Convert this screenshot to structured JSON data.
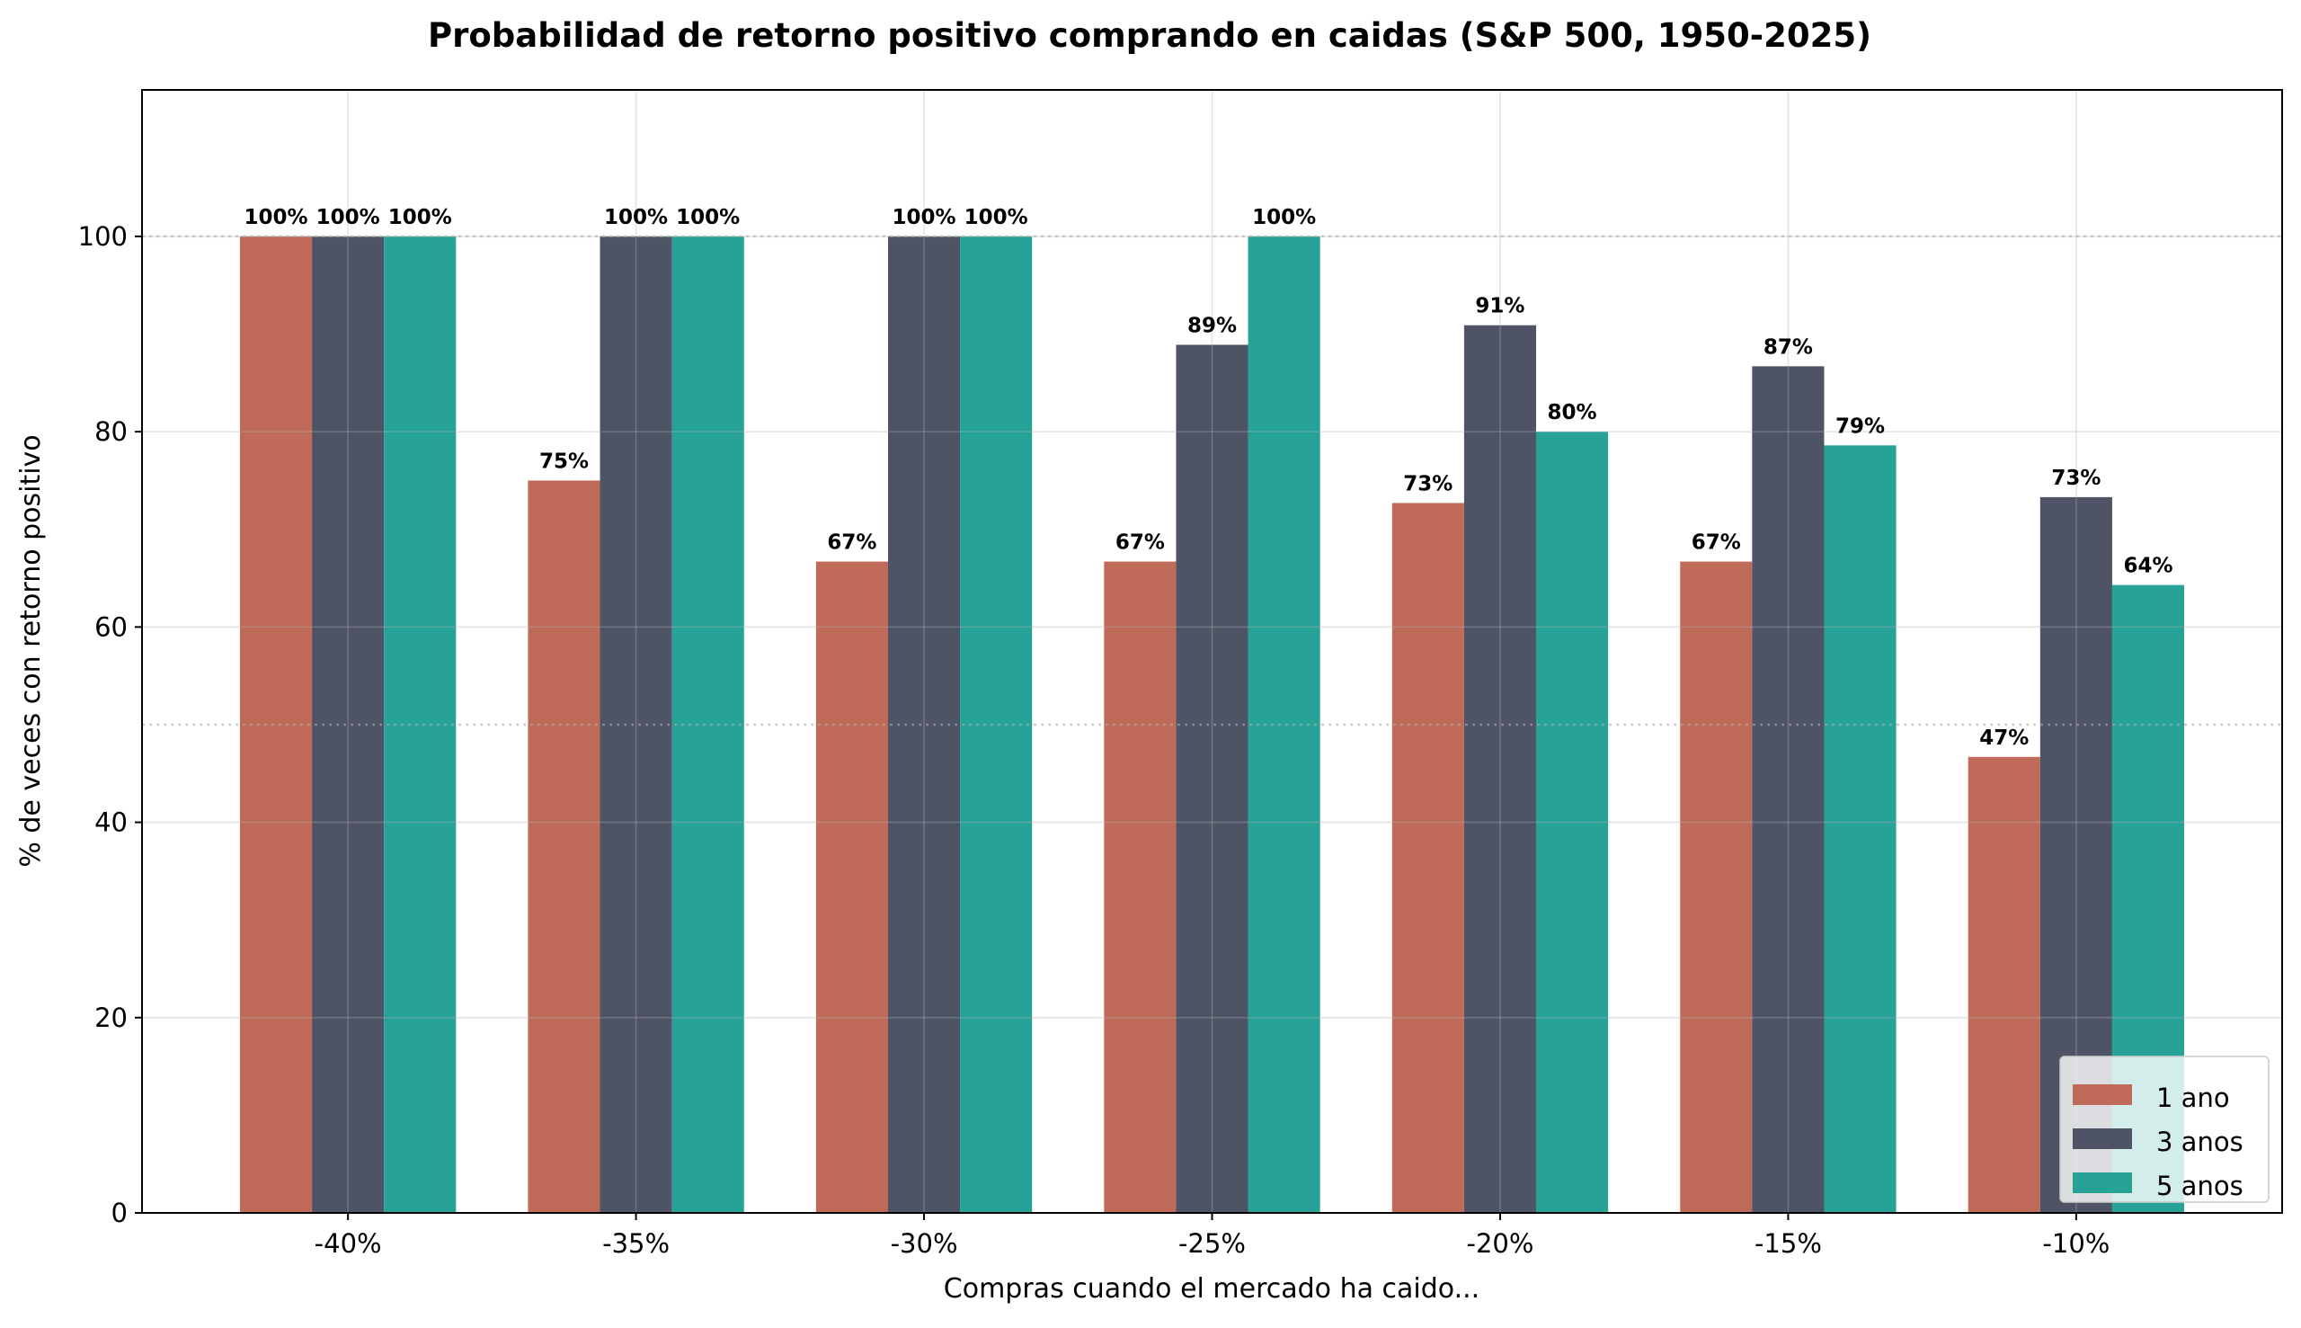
{
  "chart_data": {
    "type": "bar",
    "title": "Probabilidad de retorno positivo comprando en caidas (S&P 500, 1950-2025)",
    "xlabel": "Compras cuando el mercado ha caido...",
    "ylabel": "% de veces con retorno positivo",
    "categories": [
      "-40%",
      "-35%",
      "-30%",
      "-25%",
      "-20%",
      "-15%",
      "-10%"
    ],
    "ylim": [
      0,
      115
    ],
    "yticks": [
      0,
      20,
      40,
      60,
      80,
      100
    ],
    "grid": true,
    "reference_lines": [
      50,
      100
    ],
    "legend_position": "lower-right",
    "series": [
      {
        "name": "1 ano",
        "color": "#C06B5A",
        "values": [
          100,
          75,
          66.7,
          66.7,
          72.7,
          66.7,
          46.7
        ],
        "labels": [
          "100%",
          "75%",
          "67%",
          "67%",
          "73%",
          "67%",
          "47%"
        ]
      },
      {
        "name": "3 anos",
        "color": "#4E5465",
        "values": [
          100,
          100,
          100,
          88.9,
          90.9,
          86.7,
          73.3
        ],
        "labels": [
          "100%",
          "100%",
          "100%",
          "89%",
          "91%",
          "87%",
          "73%"
        ]
      },
      {
        "name": "5 anos",
        "color": "#26A396",
        "values": [
          100,
          100,
          100,
          100,
          80,
          78.6,
          64.3
        ],
        "labels": [
          "100%",
          "100%",
          "100%",
          "100%",
          "80%",
          "79%",
          "64%"
        ]
      }
    ]
  }
}
